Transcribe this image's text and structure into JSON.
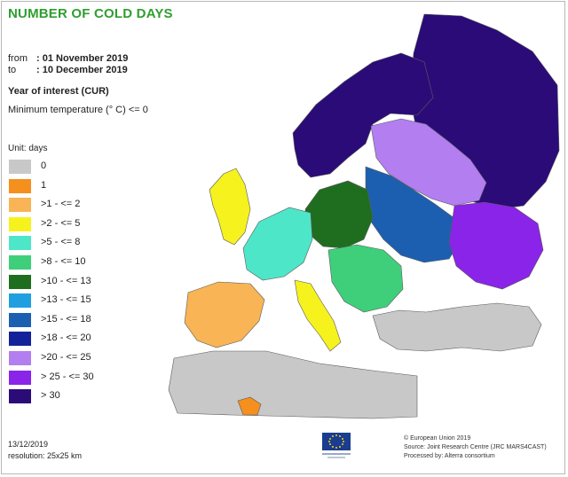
{
  "title": "NUMBER OF COLD DAYS",
  "period": {
    "from_label": "from",
    "from_value": ": 01 November 2019",
    "to_label": "to",
    "to_value": ": 10 December 2019"
  },
  "year_of_interest": "Year of interest (CUR)",
  "criterion": "Minimum temperature (° C) <= 0",
  "legend": {
    "unit": "Unit: days",
    "items": [
      {
        "label": "0",
        "color": "#c8c8c8"
      },
      {
        "label": "1",
        "color": "#f58f1e"
      },
      {
        "label": ">1 - <= 2",
        "color": "#f8b455"
      },
      {
        "label": ">2 - <= 5",
        "color": "#f6f21e"
      },
      {
        "label": ">5 - <= 8",
        "color": "#4ee6c8"
      },
      {
        "label": ">8 - <= 10",
        "color": "#3fcf7b"
      },
      {
        "label": ">10 - <= 13",
        "color": "#1f6e1f"
      },
      {
        "label": ">13 - <= 15",
        "color": "#1f9fe0"
      },
      {
        "label": ">15 - <= 18",
        "color": "#1c5fb0"
      },
      {
        "label": ">18 - <= 20",
        "color": "#14229a"
      },
      {
        "label": ">20 - <= 25",
        "color": "#b27ef0"
      },
      {
        "label": "> 25 - <= 30",
        "color": "#8a24e8"
      },
      {
        "label": "> 30",
        "color": "#2b0b78"
      }
    ]
  },
  "footer": {
    "date": "13/12/2019",
    "resolution": "resolution: 25x25 km",
    "credit_1": "© European Union 2019",
    "credit_2": "Source: Joint Research Centre (JRC MARS4CAST)",
    "credit_3": "Processed by: Alterra consortium"
  }
}
